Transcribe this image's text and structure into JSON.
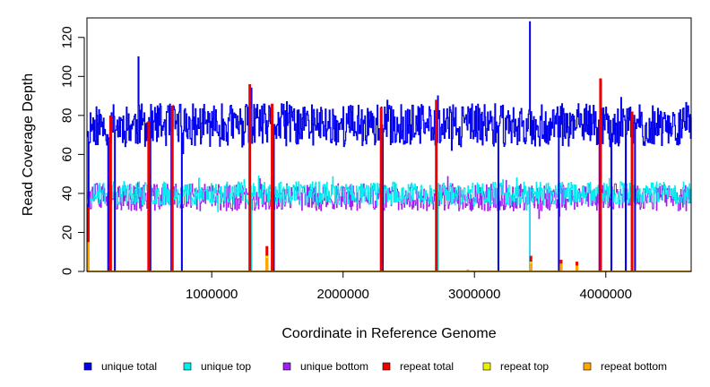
{
  "chart_data": {
    "type": "line",
    "title": "",
    "xlabel": "Coordinate in Reference Genome",
    "ylabel": "Read Coverage Depth",
    "xlim": [
      50000,
      4650000
    ],
    "ylim": [
      0,
      130
    ],
    "x_ticks": [
      1000000,
      2000000,
      3000000,
      4000000
    ],
    "x_tick_labels": [
      "1000000",
      "2000000",
      "3000000",
      "4000000"
    ],
    "y_ticks": [
      0,
      20,
      40,
      60,
      80,
      100,
      120
    ],
    "y_tick_labels": [
      "0",
      "20",
      "40",
      "60",
      "80",
      "100",
      "120"
    ],
    "legend_position": "bottom",
    "series": [
      {
        "name": "unique total",
        "color": "#0000ee",
        "step": 5000,
        "mean": 75,
        "amp": 11,
        "seed": 11,
        "spikes": [
          [
            440000,
            110
          ],
          [
            3420000,
            128
          ],
          [
            2720000,
            90
          ],
          [
            1300000,
            94
          ],
          [
            3960000,
            97
          ]
        ],
        "dips": [
          60000,
          210000,
          260000,
          530000,
          690000,
          770000,
          1300000,
          1470000,
          2300000,
          2720000,
          3180000,
          3420000,
          3640000,
          3950000,
          4040000,
          4150000,
          4220000
        ]
      },
      {
        "name": "unique top",
        "color": "#00eeee",
        "step": 5000,
        "mean": 40,
        "amp": 6,
        "seed": 23,
        "dips": [
          60000,
          210000,
          260000,
          530000,
          690000,
          770000,
          1300000,
          1470000,
          2300000,
          2720000,
          3180000,
          3420000,
          3640000,
          3950000,
          4040000,
          4150000,
          4220000
        ]
      },
      {
        "name": "unique bottom",
        "color": "#a020f0",
        "step": 5000,
        "mean": 38,
        "amp": 7,
        "seed": 37,
        "dips": [
          60000,
          210000,
          260000,
          530000,
          690000,
          770000,
          1300000,
          1470000,
          2300000,
          2720000,
          3180000,
          3420000,
          3640000,
          3950000,
          4040000,
          4150000,
          4220000
        ]
      },
      {
        "name": "repeat total",
        "color": "#ee0000",
        "points": [
          [
            60000,
            33
          ],
          [
            230000,
            80
          ],
          [
            520000,
            77
          ],
          [
            700000,
            85
          ],
          [
            1290000,
            96
          ],
          [
            1420000,
            13
          ],
          [
            1460000,
            86
          ],
          [
            2290000,
            84
          ],
          [
            2710000,
            88
          ],
          [
            3430000,
            8
          ],
          [
            3660000,
            6
          ],
          [
            3780000,
            5
          ],
          [
            3960000,
            99
          ],
          [
            4200000,
            82
          ]
        ]
      },
      {
        "name": "repeat top",
        "color": "#eeee00",
        "points": [
          [
            60000,
            15
          ],
          [
            1420000,
            8
          ],
          [
            3430000,
            5
          ],
          [
            3660000,
            3
          ],
          [
            3780000,
            3
          ]
        ]
      },
      {
        "name": "repeat bottom",
        "color": "#ffa500",
        "points": [
          [
            60000,
            15
          ],
          [
            1420000,
            7
          ],
          [
            2950000,
            1
          ],
          [
            3430000,
            4
          ],
          [
            3660000,
            4
          ],
          [
            3780000,
            3
          ]
        ]
      }
    ]
  }
}
